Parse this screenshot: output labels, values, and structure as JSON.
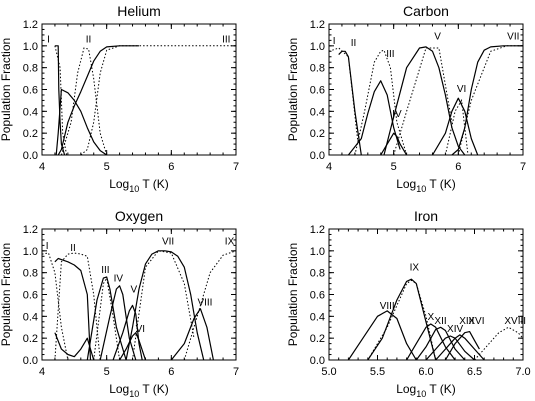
{
  "chart_data": [
    {
      "type": "line",
      "title": "Helium",
      "xlabel": "Log10 T (K)",
      "ylabel": "Population Fraction",
      "xlim": [
        4,
        7
      ],
      "ylim": [
        0,
        1.2
      ],
      "xticks": [
        "4",
        "5",
        "6",
        "7"
      ],
      "yticks": [
        "0.0",
        "0.2",
        "0.4",
        "0.6",
        "0.8",
        "1.0",
        "1.2"
      ],
      "series": [
        {
          "style": "solid",
          "x": [
            4.2,
            4.22,
            4.25,
            4.26,
            4.28,
            4.3,
            4.35
          ],
          "y": [
            1.0,
            1.0,
            1.0,
            0.6,
            0.3,
            0.1,
            0.0
          ]
        },
        {
          "style": "solid",
          "x": [
            4.22,
            4.25,
            4.3,
            4.4,
            4.5,
            4.6,
            4.7,
            4.8,
            4.9,
            5.0
          ],
          "y": [
            0.0,
            0.2,
            0.6,
            0.57,
            0.5,
            0.4,
            0.25,
            0.12,
            0.04,
            0.0
          ]
        },
        {
          "style": "solid",
          "x": [
            4.25,
            4.3,
            4.4,
            4.5,
            4.6,
            4.7,
            4.8,
            4.9,
            5.0,
            5.2,
            5.5
          ],
          "y": [
            0.0,
            0.05,
            0.3,
            0.45,
            0.58,
            0.72,
            0.86,
            0.95,
            0.99,
            1.0,
            1.0
          ]
        },
        {
          "style": "dotted",
          "x": [
            4.2,
            4.28,
            4.32,
            4.38
          ],
          "y": [
            1.0,
            0.8,
            0.2,
            0.0
          ]
        },
        {
          "style": "dotted",
          "x": [
            4.3,
            4.45,
            4.55,
            4.65,
            4.72,
            4.8,
            4.9,
            5.0
          ],
          "y": [
            0.0,
            0.3,
            0.75,
            0.98,
            0.97,
            0.7,
            0.2,
            0.0
          ]
        },
        {
          "style": "dotted",
          "x": [
            4.6,
            4.7,
            4.8,
            4.9,
            5.0,
            5.2,
            6.0,
            7.0
          ],
          "y": [
            0.0,
            0.05,
            0.3,
            0.75,
            0.96,
            1.0,
            1.0,
            1.0
          ]
        }
      ],
      "labels": [
        {
          "text": "I",
          "x": 4.1,
          "y": 1.01
        },
        {
          "text": "II",
          "x": 4.72,
          "y": 1.01
        },
        {
          "text": "III",
          "x": 6.85,
          "y": 1.01
        }
      ]
    },
    {
      "type": "line",
      "title": "Carbon",
      "xlabel": "Log10 T (K)",
      "ylabel": "Population Fraction",
      "xlim": [
        4,
        7
      ],
      "ylim": [
        0,
        1.2
      ],
      "xticks": [
        "4",
        "5",
        "6",
        "7"
      ],
      "yticks": [
        "0.0",
        "0.2",
        "0.4",
        "0.6",
        "0.8",
        "1.0",
        "1.2"
      ],
      "series": [
        {
          "style": "solid",
          "x": [
            4.15,
            4.2,
            4.25,
            4.3,
            4.4,
            4.5
          ],
          "y": [
            0.92,
            0.95,
            0.95,
            0.9,
            0.4,
            0.0
          ]
        },
        {
          "style": "solid",
          "x": [
            4.3,
            4.5,
            4.6,
            4.7,
            4.8,
            4.9,
            5.0,
            5.1
          ],
          "y": [
            0.0,
            0.15,
            0.38,
            0.58,
            0.68,
            0.55,
            0.25,
            0.05
          ]
        },
        {
          "style": "solid",
          "x": [
            4.8,
            4.9,
            5.0,
            5.05,
            5.1,
            5.2
          ],
          "y": [
            0.0,
            0.1,
            0.2,
            0.17,
            0.1,
            0.0
          ]
        },
        {
          "style": "solid",
          "x": [
            4.85,
            5.0,
            5.2,
            5.4,
            5.5,
            5.6,
            5.7,
            5.8,
            5.9,
            6.0,
            6.1
          ],
          "y": [
            0.0,
            0.35,
            0.8,
            0.98,
            0.99,
            0.95,
            0.8,
            0.55,
            0.25,
            0.08,
            0.0
          ]
        },
        {
          "style": "solid",
          "x": [
            5.6,
            5.8,
            5.9,
            6.0,
            6.1,
            6.2,
            6.3
          ],
          "y": [
            0.0,
            0.2,
            0.4,
            0.52,
            0.4,
            0.15,
            0.0
          ]
        },
        {
          "style": "solid",
          "x": [
            5.9,
            6.0,
            6.1,
            6.2,
            6.3,
            6.4,
            6.5,
            6.7,
            7.0
          ],
          "y": [
            0.0,
            0.05,
            0.25,
            0.6,
            0.85,
            0.96,
            0.99,
            1.0,
            1.0
          ]
        },
        {
          "style": "dotted",
          "x": [
            4.0,
            4.15,
            4.3,
            4.45
          ],
          "y": [
            0.95,
            0.98,
            0.9,
            0.1
          ]
        },
        {
          "style": "dotted",
          "x": [
            4.4,
            4.55,
            4.7,
            4.8,
            4.85,
            4.95,
            5.05,
            5.2
          ],
          "y": [
            0.0,
            0.4,
            0.85,
            0.95,
            0.96,
            0.8,
            0.3,
            0.0
          ]
        },
        {
          "style": "dotted",
          "x": [
            5.0,
            5.2,
            5.5,
            5.7,
            5.9
          ],
          "y": [
            0.0,
            0.4,
            0.98,
            0.98,
            0.3
          ]
        },
        {
          "style": "dotted",
          "x": [
            5.8,
            5.95,
            6.05,
            6.15
          ],
          "y": [
            0.0,
            0.4,
            0.5,
            0.0
          ]
        },
        {
          "style": "dotted",
          "x": [
            6.0,
            6.2,
            6.5,
            6.75,
            7.0
          ],
          "y": [
            0.0,
            0.5,
            0.95,
            1.0,
            1.0
          ]
        }
      ],
      "labels": [
        {
          "text": "I",
          "x": 4.08,
          "y": 1.0
        },
        {
          "text": "II",
          "x": 4.38,
          "y": 0.98
        },
        {
          "text": "III",
          "x": 4.95,
          "y": 0.88
        },
        {
          "text": "IV",
          "x": 5.05,
          "y": 0.33
        },
        {
          "text": "V",
          "x": 5.68,
          "y": 1.04
        },
        {
          "text": "VI",
          "x": 6.05,
          "y": 0.56
        },
        {
          "text": "VII",
          "x": 6.85,
          "y": 1.04
        }
      ]
    },
    {
      "type": "line",
      "title": "Oxygen",
      "xlabel": "Log10 T (K)",
      "ylabel": "Population Fraction",
      "xlim": [
        4,
        7
      ],
      "ylim": [
        0,
        1.2
      ],
      "xticks": [
        "4",
        "5",
        "6",
        "7"
      ],
      "yticks": [
        "0.0",
        "0.2",
        "0.4",
        "0.6",
        "0.8",
        "1.0",
        "1.2"
      ],
      "series": [
        {
          "style": "solid",
          "x": [
            4.2,
            4.25,
            4.3,
            4.4,
            4.5,
            4.6,
            4.7,
            4.75
          ],
          "y": [
            0.9,
            0.93,
            0.92,
            0.9,
            0.87,
            0.82,
            0.6,
            0.0
          ]
        },
        {
          "style": "solid",
          "x": [
            4.2,
            4.3,
            4.4,
            4.5,
            4.6,
            4.7,
            4.8
          ],
          "y": [
            0.25,
            0.1,
            0.05,
            0.03,
            0.1,
            0.2,
            0.0
          ]
        },
        {
          "style": "solid",
          "x": [
            4.7,
            4.85,
            4.95,
            5.0,
            5.05,
            5.15,
            5.3
          ],
          "y": [
            0.0,
            0.55,
            0.75,
            0.76,
            0.65,
            0.3,
            0.0
          ]
        },
        {
          "style": "solid",
          "x": [
            4.9,
            5.05,
            5.15,
            5.2,
            5.25,
            5.35,
            5.45
          ],
          "y": [
            0.0,
            0.4,
            0.65,
            0.68,
            0.6,
            0.2,
            0.0
          ]
        },
        {
          "style": "solid",
          "x": [
            5.1,
            5.25,
            5.35,
            5.4,
            5.45,
            5.5,
            5.55
          ],
          "y": [
            0.0,
            0.25,
            0.45,
            0.5,
            0.42,
            0.15,
            0.0
          ]
        },
        {
          "style": "solid",
          "x": [
            5.2,
            5.3,
            5.4,
            5.45,
            5.5,
            5.6
          ],
          "y": [
            0.0,
            0.1,
            0.22,
            0.25,
            0.18,
            0.0
          ]
        },
        {
          "style": "solid",
          "x": [
            5.3,
            5.4,
            5.5,
            5.6,
            5.7,
            5.8,
            5.9,
            6.0,
            6.1,
            6.2,
            6.3,
            6.4,
            6.5
          ],
          "y": [
            0.0,
            0.3,
            0.65,
            0.88,
            0.97,
            1.0,
            1.0,
            0.99,
            0.95,
            0.85,
            0.6,
            0.25,
            0.0
          ]
        },
        {
          "style": "solid",
          "x": [
            6.0,
            6.2,
            6.35,
            6.45,
            6.55,
            6.65
          ],
          "y": [
            0.0,
            0.15,
            0.38,
            0.47,
            0.3,
            0.0
          ]
        },
        {
          "style": "dotted",
          "x": [
            4.0,
            4.1,
            4.2,
            4.3,
            4.4
          ],
          "y": [
            0.97,
            0.98,
            0.8,
            0.3,
            0.0
          ]
        },
        {
          "style": "dotted",
          "x": [
            4.2,
            4.3,
            4.4,
            4.5,
            4.6,
            4.7,
            4.8,
            4.9
          ],
          "y": [
            0.0,
            0.9,
            0.97,
            0.98,
            0.97,
            0.95,
            0.6,
            0.0
          ]
        },
        {
          "style": "dotted",
          "x": [
            4.8,
            4.95,
            5.0,
            5.1,
            5.2
          ],
          "y": [
            0.0,
            0.7,
            0.75,
            0.4,
            0.0
          ]
        },
        {
          "style": "dotted",
          "x": [
            5.4,
            5.6,
            5.8,
            6.0,
            6.2,
            6.35
          ],
          "y": [
            0.0,
            0.85,
            1.0,
            0.98,
            0.7,
            0.2
          ]
        },
        {
          "style": "dotted",
          "x": [
            6.2,
            6.4,
            6.6,
            6.8,
            7.0
          ],
          "y": [
            0.0,
            0.4,
            0.8,
            0.96,
            1.0
          ]
        }
      ],
      "labels": [
        {
          "text": "I",
          "x": 4.08,
          "y": 1.0
        },
        {
          "text": "II",
          "x": 4.48,
          "y": 0.98
        },
        {
          "text": "III",
          "x": 4.98,
          "y": 0.78
        },
        {
          "text": "IV",
          "x": 5.18,
          "y": 0.7
        },
        {
          "text": "V",
          "x": 5.42,
          "y": 0.6
        },
        {
          "text": "VI",
          "x": 5.52,
          "y": 0.24
        },
        {
          "text": "VII",
          "x": 5.95,
          "y": 1.04
        },
        {
          "text": "VIII",
          "x": 6.52,
          "y": 0.48
        },
        {
          "text": "IX",
          "x": 6.9,
          "y": 1.04
        }
      ]
    },
    {
      "type": "line",
      "title": "Iron",
      "xlabel": "Log10 T (K)",
      "ylabel": "Population Fraction",
      "xlim": [
        5.0,
        7.0
      ],
      "ylim": [
        0,
        1.2
      ],
      "xticks": [
        "5.0",
        "5.5",
        "6.0",
        "6.5",
        "7.0"
      ],
      "yticks": [
        "0.0",
        "0.2",
        "0.4",
        "0.6",
        "0.8",
        "1.0",
        "1.2"
      ],
      "series": [
        {
          "style": "solid",
          "x": [
            5.2,
            5.35,
            5.5,
            5.6,
            5.7,
            5.8,
            5.9
          ],
          "y": [
            0.0,
            0.2,
            0.4,
            0.45,
            0.38,
            0.15,
            0.0
          ]
        },
        {
          "style": "solid",
          "x": [
            5.4,
            5.55,
            5.7,
            5.8,
            5.85,
            5.9,
            6.0,
            6.1
          ],
          "y": [
            0.0,
            0.2,
            0.55,
            0.72,
            0.74,
            0.7,
            0.35,
            0.0
          ]
        },
        {
          "style": "solid",
          "x": [
            5.8,
            5.9,
            6.0,
            6.05,
            6.1,
            6.2,
            6.3
          ],
          "y": [
            0.0,
            0.15,
            0.3,
            0.33,
            0.3,
            0.12,
            0.0
          ]
        },
        {
          "style": "solid",
          "x": [
            5.9,
            6.0,
            6.1,
            6.15,
            6.2,
            6.3,
            6.4
          ],
          "y": [
            0.0,
            0.12,
            0.28,
            0.3,
            0.27,
            0.1,
            0.0
          ]
        },
        {
          "style": "solid",
          "x": [
            6.0,
            6.1,
            6.2,
            6.25,
            6.3,
            6.4,
            6.5
          ],
          "y": [
            0.0,
            0.1,
            0.2,
            0.22,
            0.2,
            0.08,
            0.0
          ]
        },
        {
          "style": "solid",
          "x": [
            6.1,
            6.2,
            6.3,
            6.35,
            6.4,
            6.5,
            6.6
          ],
          "y": [
            0.0,
            0.1,
            0.2,
            0.23,
            0.2,
            0.1,
            0.0
          ]
        },
        {
          "style": "solid",
          "x": [
            6.2,
            6.3,
            6.4,
            6.45,
            6.5,
            6.55
          ],
          "y": [
            0.0,
            0.15,
            0.25,
            0.26,
            0.18,
            0.1
          ]
        },
        {
          "style": "dotted",
          "x": [
            5.4,
            5.6,
            5.8,
            5.85,
            5.9,
            6.0,
            6.1
          ],
          "y": [
            0.0,
            0.3,
            0.7,
            0.73,
            0.7,
            0.4,
            0.0
          ]
        },
        {
          "style": "dotted",
          "x": [
            6.5,
            6.65,
            6.75,
            6.85,
            6.95,
            7.0
          ],
          "y": [
            0.0,
            0.15,
            0.25,
            0.3,
            0.25,
            0.2
          ]
        }
      ],
      "labels": [
        {
          "text": "VIII",
          "x": 5.6,
          "y": 0.45
        },
        {
          "text": "IX",
          "x": 5.88,
          "y": 0.8
        },
        {
          "text": "X",
          "x": 6.05,
          "y": 0.35
        },
        {
          "text": "XII",
          "x": 6.15,
          "y": 0.31
        },
        {
          "text": "XIV",
          "x": 6.3,
          "y": 0.24
        },
        {
          "text": "XIII",
          "x": 6.42,
          "y": 0.31
        },
        {
          "text": "XVI",
          "x": 6.52,
          "y": 0.31
        },
        {
          "text": "XVIII",
          "x": 6.92,
          "y": 0.31
        }
      ]
    }
  ]
}
